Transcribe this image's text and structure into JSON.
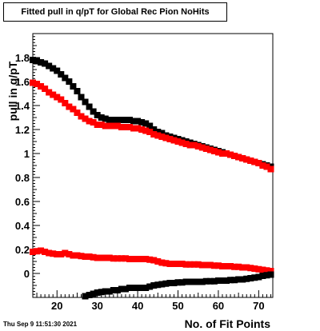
{
  "chart_data": {
    "type": "scatter",
    "title": "Fitted pull in q/pT for Global Rec Pion NoHits",
    "xlabel": "No. of Fit Points",
    "ylabel": "pull in q/pT",
    "xlim": [
      14,
      73.5
    ],
    "ylim": [
      -0.2,
      2.0
    ],
    "xticks": [
      20,
      30,
      40,
      50,
      60,
      70
    ],
    "yticks": [
      0,
      0.2,
      0.4,
      0.6,
      0.8,
      1,
      1.2,
      1.4,
      1.6,
      1.8
    ],
    "grid": false,
    "series": [
      {
        "color": "#000000",
        "marker": "square",
        "x": [
          14,
          15,
          16,
          17,
          18,
          19,
          20,
          21,
          22,
          23,
          24,
          25,
          26,
          27,
          28,
          29,
          30,
          31,
          32,
          33,
          34,
          35,
          36,
          37,
          38,
          39,
          40,
          41,
          42,
          43,
          44,
          45,
          46,
          47,
          48,
          49,
          50,
          51,
          52,
          53,
          54,
          55,
          56,
          57,
          58,
          59,
          60,
          61,
          62,
          63,
          64,
          65,
          66,
          67,
          68,
          69,
          70,
          71,
          72,
          73
        ],
        "values": [
          1.78,
          1.77,
          1.76,
          1.75,
          1.73,
          1.71,
          1.69,
          1.66,
          1.63,
          1.6,
          1.56,
          1.52,
          1.47,
          1.43,
          1.39,
          1.35,
          1.32,
          1.3,
          1.29,
          1.28,
          1.28,
          1.28,
          1.28,
          1.28,
          1.28,
          1.27,
          1.27,
          1.26,
          1.25,
          1.23,
          1.2,
          1.18,
          1.17,
          1.15,
          1.14,
          1.13,
          1.12,
          1.11,
          1.1,
          1.09,
          1.08,
          1.07,
          1.06,
          1.05,
          1.04,
          1.03,
          1.02,
          1.01,
          1.0,
          0.99,
          0.98,
          0.97,
          0.96,
          0.95,
          0.94,
          0.93,
          0.92,
          0.91,
          0.9,
          0.89
        ]
      },
      {
        "color": "#ff0000",
        "marker": "square",
        "x": [
          14,
          15,
          16,
          17,
          18,
          19,
          20,
          21,
          22,
          23,
          24,
          25,
          26,
          27,
          28,
          29,
          30,
          31,
          32,
          33,
          34,
          35,
          36,
          37,
          38,
          39,
          40,
          41,
          42,
          43,
          44,
          45,
          46,
          47,
          48,
          49,
          50,
          51,
          52,
          53,
          54,
          55,
          56,
          57,
          58,
          59,
          60,
          61,
          62,
          63,
          64,
          65,
          66,
          67,
          68,
          69,
          70,
          71,
          72,
          73
        ],
        "values": [
          1.59,
          1.58,
          1.56,
          1.54,
          1.51,
          1.49,
          1.47,
          1.45,
          1.42,
          1.39,
          1.37,
          1.34,
          1.31,
          1.29,
          1.27,
          1.26,
          1.24,
          1.24,
          1.23,
          1.23,
          1.23,
          1.23,
          1.22,
          1.22,
          1.22,
          1.21,
          1.21,
          1.2,
          1.19,
          1.18,
          1.16,
          1.15,
          1.14,
          1.13,
          1.12,
          1.11,
          1.1,
          1.09,
          1.08,
          1.07,
          1.07,
          1.06,
          1.05,
          1.04,
          1.03,
          1.02,
          1.01,
          1.0,
          1.0,
          0.99,
          0.98,
          0.97,
          0.96,
          0.95,
          0.94,
          0.93,
          0.92,
          0.9,
          0.89,
          0.87
        ]
      },
      {
        "color": "#ff0000",
        "marker": "square",
        "x": [
          14,
          15,
          16,
          17,
          18,
          19,
          20,
          21,
          22,
          23,
          24,
          25,
          26,
          27,
          28,
          29,
          30,
          31,
          32,
          33,
          34,
          35,
          36,
          37,
          38,
          39,
          40,
          41,
          42,
          43,
          44,
          45,
          46,
          47,
          48,
          49,
          50,
          51,
          52,
          53,
          54,
          55,
          56,
          57,
          58,
          59,
          60,
          61,
          62,
          63,
          64,
          65,
          66,
          67,
          68,
          69,
          70,
          71,
          72,
          73
        ],
        "values": [
          0.18,
          0.185,
          0.19,
          0.18,
          0.17,
          0.165,
          0.16,
          0.16,
          0.17,
          0.16,
          0.15,
          0.15,
          0.145,
          0.14,
          0.14,
          0.135,
          0.13,
          0.13,
          0.13,
          0.13,
          0.125,
          0.125,
          0.125,
          0.125,
          0.12,
          0.12,
          0.12,
          0.12,
          0.12,
          0.115,
          0.11,
          0.1,
          0.09,
          0.085,
          0.08,
          0.08,
          0.08,
          0.08,
          0.075,
          0.075,
          0.075,
          0.075,
          0.07,
          0.07,
          0.07,
          0.065,
          0.065,
          0.06,
          0.06,
          0.06,
          0.055,
          0.055,
          0.05,
          0.05,
          0.045,
          0.04,
          0.035,
          0.03,
          0.025,
          0.02
        ]
      },
      {
        "color": "#000000",
        "marker": "square",
        "x": [
          27,
          28,
          29,
          30,
          31,
          32,
          33,
          34,
          35,
          36,
          37,
          38,
          39,
          40,
          41,
          42,
          43,
          44,
          45,
          46,
          47,
          48,
          49,
          50,
          51,
          52,
          53,
          54,
          55,
          56,
          57,
          58,
          59,
          60,
          61,
          62,
          63,
          64,
          65,
          66,
          67,
          68,
          69,
          70,
          71,
          72,
          73
        ],
        "values": [
          -0.19,
          -0.18,
          -0.17,
          -0.16,
          -0.155,
          -0.15,
          -0.15,
          -0.14,
          -0.14,
          -0.13,
          -0.13,
          -0.12,
          -0.12,
          -0.12,
          -0.12,
          -0.12,
          -0.11,
          -0.1,
          -0.095,
          -0.09,
          -0.085,
          -0.08,
          -0.08,
          -0.075,
          -0.075,
          -0.07,
          -0.07,
          -0.07,
          -0.07,
          -0.07,
          -0.065,
          -0.065,
          -0.065,
          -0.06,
          -0.06,
          -0.06,
          -0.055,
          -0.055,
          -0.05,
          -0.05,
          -0.045,
          -0.04,
          -0.035,
          -0.03,
          -0.02,
          -0.015,
          -0.01
        ]
      }
    ]
  },
  "footer_timestamp": "Thu Sep  9 11:51:30 2021",
  "frame_color": "#000000"
}
